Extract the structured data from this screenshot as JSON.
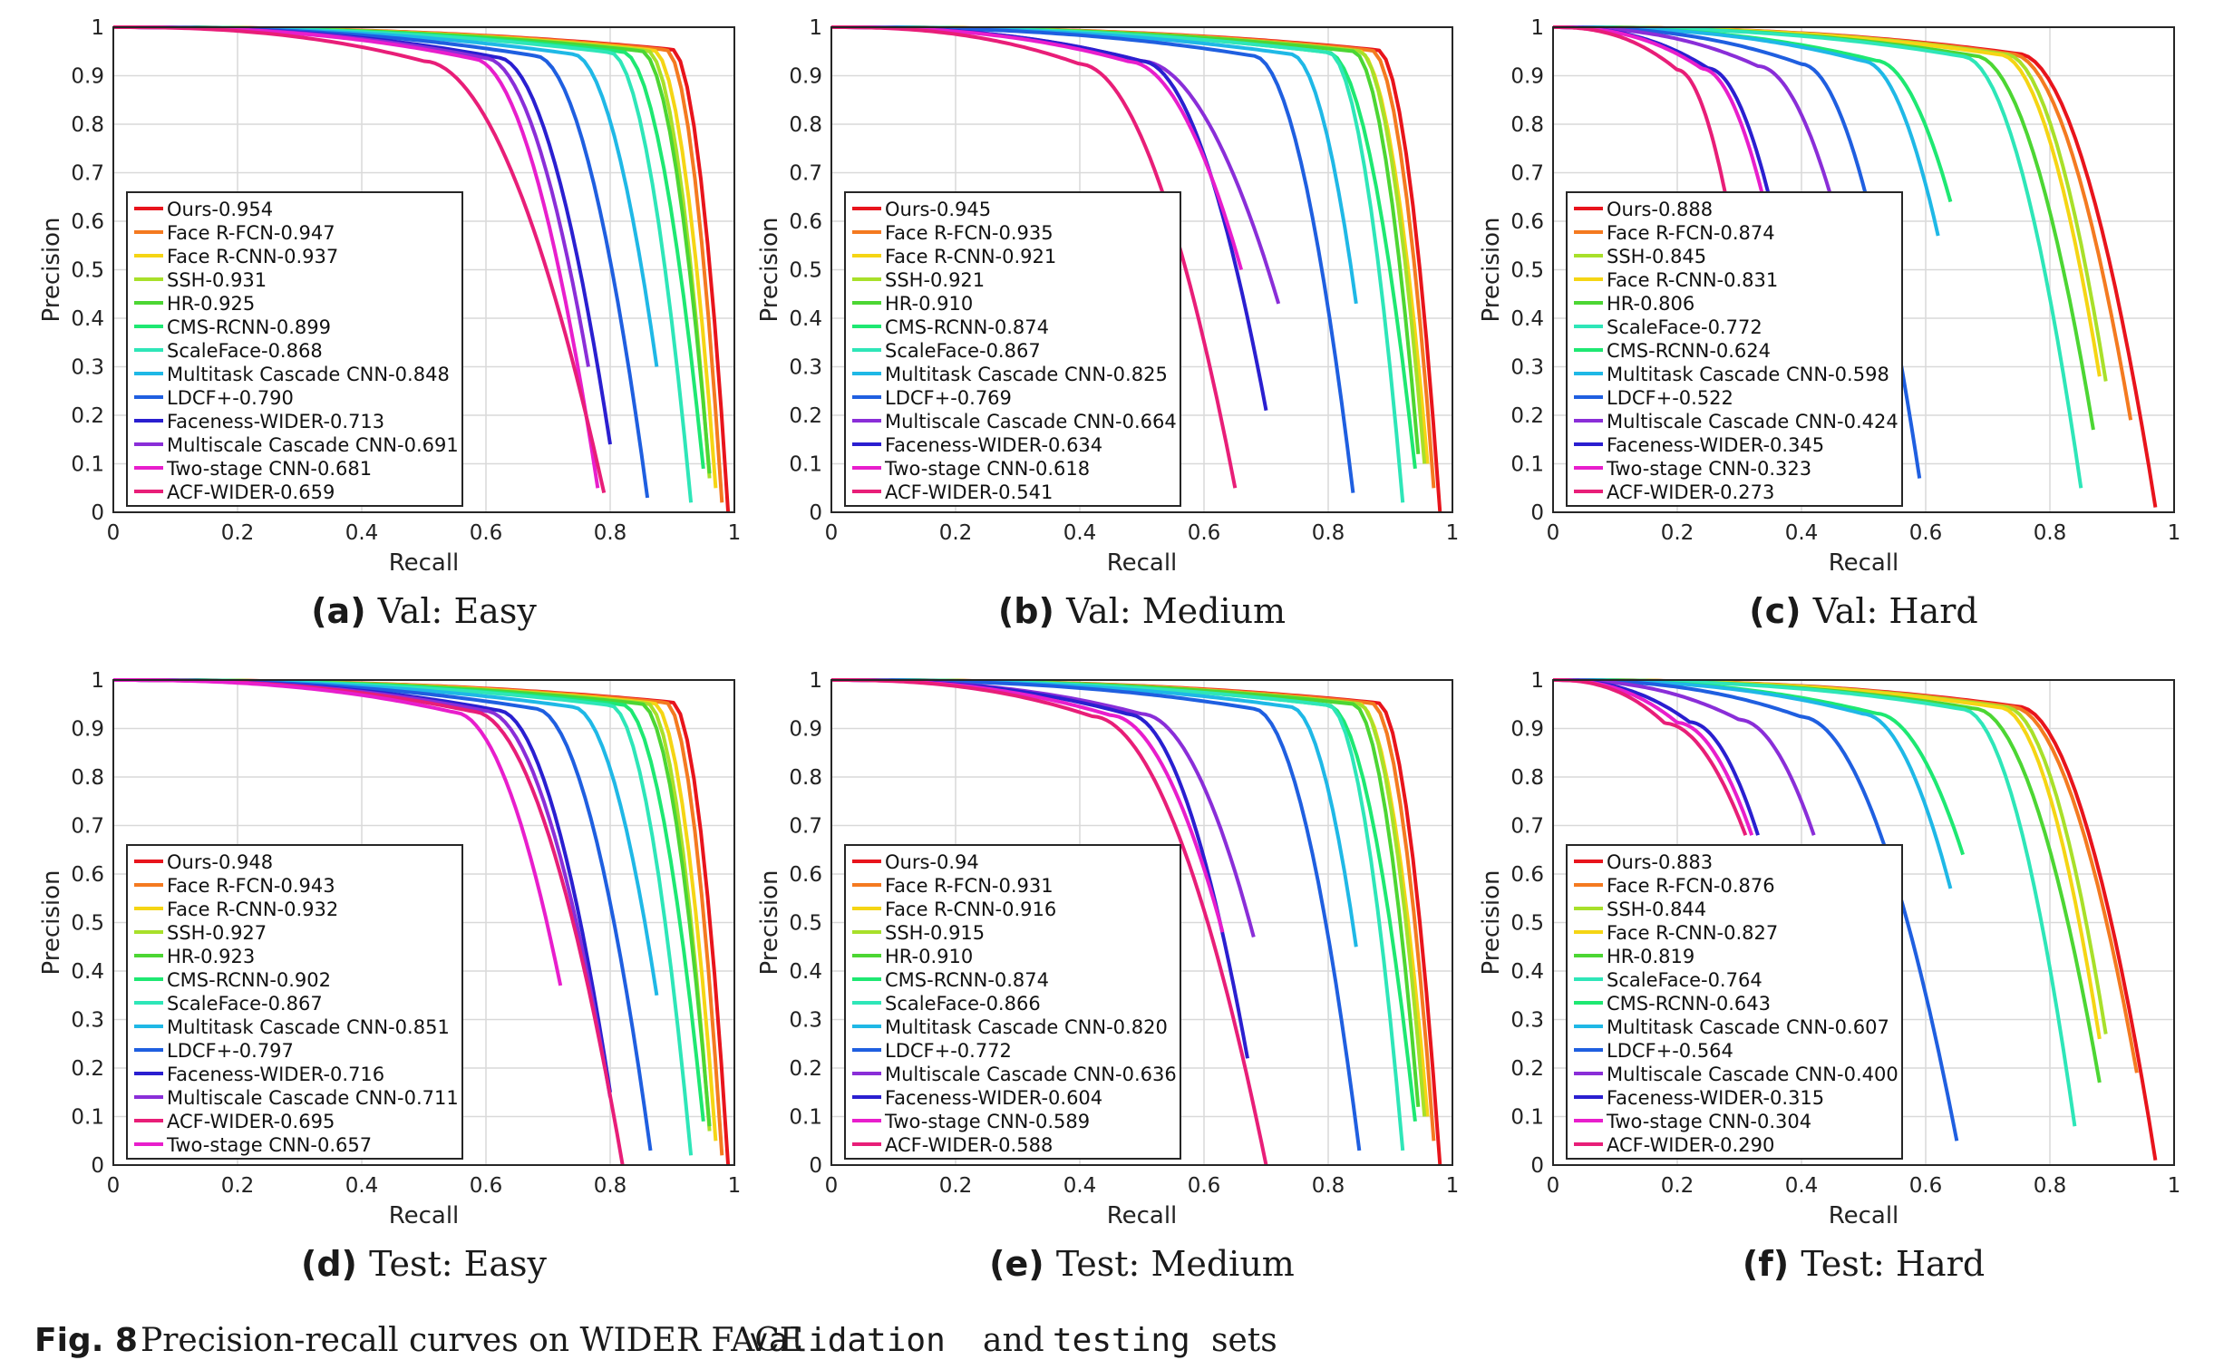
{
  "figure": {
    "caption_label": "Fig. 8",
    "caption_text_1": "Precision-recall curves on WIDER FACE",
    "caption_code_1": "validation",
    "caption_text_2": "and",
    "caption_code_2": "testing",
    "caption_text_3": "sets"
  },
  "colors": {
    "Ours": "#e8141c",
    "Face R-FCN": "#f47a20",
    "Face R-CNN": "#f5d514",
    "SSH": "#a8e02a",
    "HR": "#4cd633",
    "CMS-RCNN": "#1ee872",
    "ScaleFace": "#2ee6b8",
    "Multitask Cascade CNN": "#1fb8e6",
    "LDCF+": "#1f5fe0",
    "Faceness-WIDER": "#2a1fd0",
    "Multiscale Cascade CNN": "#8a2ed8",
    "Two-stage CNN": "#e81ecc",
    "ACF-WIDER": "#e81e78"
  },
  "chart_data": [
    {
      "type": "line",
      "panel_label": "(a)",
      "subtitle": "Val: Easy",
      "xlabel": "Recall",
      "ylabel": "Precision",
      "xlim": [
        0,
        1
      ],
      "ylim": [
        0,
        1
      ],
      "xticks": [
        "0",
        "0.2",
        "0.4",
        "0.6",
        "0.8",
        "1"
      ],
      "yticks": [
        "0",
        "0.1",
        "0.2",
        "0.3",
        "0.4",
        "0.5",
        "0.6",
        "0.7",
        "0.8",
        "0.9",
        "1"
      ],
      "grid": true,
      "legend_position": "lower-left",
      "series": [
        {
          "name": "Ours",
          "label": "Ours-0.954",
          "end_recall": 0.99,
          "end_precision": 0.0,
          "knee": 0.9
        },
        {
          "name": "Face R-FCN",
          "label": "Face R-FCN-0.947",
          "end_recall": 0.98,
          "end_precision": 0.02,
          "knee": 0.89
        },
        {
          "name": "Face R-CNN",
          "label": "Face R-CNN-0.937",
          "end_recall": 0.97,
          "end_precision": 0.05,
          "knee": 0.87
        },
        {
          "name": "SSH",
          "label": "SSH-0.931",
          "end_recall": 0.96,
          "end_precision": 0.07,
          "knee": 0.86
        },
        {
          "name": "HR",
          "label": "HR-0.925",
          "end_recall": 0.96,
          "end_precision": 0.08,
          "knee": 0.85
        },
        {
          "name": "CMS-RCNN",
          "label": "CMS-RCNN-0.899",
          "end_recall": 0.95,
          "end_precision": 0.09,
          "knee": 0.82
        },
        {
          "name": "ScaleFace",
          "label": "ScaleFace-0.868",
          "end_recall": 0.93,
          "end_precision": 0.02,
          "knee": 0.8
        },
        {
          "name": "Multitask Cascade CNN",
          "label": "Multitask Cascade CNN-0.848",
          "end_recall": 0.875,
          "end_precision": 0.3,
          "knee": 0.74
        },
        {
          "name": "LDCF+",
          "label": "LDCF+-0.790",
          "end_recall": 0.86,
          "end_precision": 0.03,
          "knee": 0.68
        },
        {
          "name": "Faceness-WIDER",
          "label": "Faceness-WIDER-0.713",
          "end_recall": 0.8,
          "end_precision": 0.14,
          "knee": 0.62
        },
        {
          "name": "Multiscale Cascade CNN",
          "label": "Multiscale Cascade CNN-0.691",
          "end_recall": 0.765,
          "end_precision": 0.3,
          "knee": 0.6
        },
        {
          "name": "Two-stage CNN",
          "label": "Two-stage CNN-0.681",
          "end_recall": 0.78,
          "end_precision": 0.05,
          "knee": 0.58
        },
        {
          "name": "ACF-WIDER",
          "label": "ACF-WIDER-0.659",
          "end_recall": 0.79,
          "end_precision": 0.04,
          "knee": 0.5
        }
      ]
    },
    {
      "type": "line",
      "panel_label": "(b)",
      "subtitle": "Val: Medium",
      "xlabel": "Recall",
      "ylabel": "Precision",
      "xlim": [
        0,
        1
      ],
      "ylim": [
        0,
        1
      ],
      "xticks": [
        "0",
        "0.2",
        "0.4",
        "0.6",
        "0.8",
        "1"
      ],
      "yticks": [
        "0",
        "0.1",
        "0.2",
        "0.3",
        "0.4",
        "0.5",
        "0.6",
        "0.7",
        "0.8",
        "0.9",
        "1"
      ],
      "grid": true,
      "legend_position": "lower-left",
      "series": [
        {
          "name": "Ours",
          "label": "Ours-0.945",
          "end_recall": 0.98,
          "end_precision": 0.0,
          "knee": 0.88
        },
        {
          "name": "Face R-FCN",
          "label": "Face R-FCN-0.935",
          "end_recall": 0.97,
          "end_precision": 0.05,
          "knee": 0.87
        },
        {
          "name": "Face R-CNN",
          "label": "Face R-CNN-0.921",
          "end_recall": 0.96,
          "end_precision": 0.1,
          "knee": 0.85
        },
        {
          "name": "SSH",
          "label": "SSH-0.921",
          "end_recall": 0.955,
          "end_precision": 0.1,
          "knee": 0.85
        },
        {
          "name": "HR",
          "label": "HR-0.910",
          "end_recall": 0.945,
          "end_precision": 0.12,
          "knee": 0.84
        },
        {
          "name": "CMS-RCNN",
          "label": "CMS-RCNN-0.874",
          "end_recall": 0.94,
          "end_precision": 0.09,
          "knee": 0.8
        },
        {
          "name": "ScaleFace",
          "label": "ScaleFace-0.867",
          "end_recall": 0.92,
          "end_precision": 0.02,
          "knee": 0.8
        },
        {
          "name": "Multitask Cascade CNN",
          "label": "Multitask Cascade CNN-0.825",
          "end_recall": 0.845,
          "end_precision": 0.43,
          "knee": 0.74
        },
        {
          "name": "LDCF+",
          "label": "LDCF+-0.769",
          "end_recall": 0.84,
          "end_precision": 0.04,
          "knee": 0.68
        },
        {
          "name": "Multiscale Cascade CNN",
          "label": "Multiscale Cascade CNN-0.664",
          "end_recall": 0.72,
          "end_precision": 0.43,
          "knee": 0.5
        },
        {
          "name": "Faceness-WIDER",
          "label": "Faceness-WIDER-0.634",
          "end_recall": 0.7,
          "end_precision": 0.21,
          "knee": 0.5
        },
        {
          "name": "Two-stage CNN",
          "label": "Two-stage CNN-0.618",
          "end_recall": 0.66,
          "end_precision": 0.5,
          "knee": 0.48
        },
        {
          "name": "ACF-WIDER",
          "label": "ACF-WIDER-0.541",
          "end_recall": 0.65,
          "end_precision": 0.05,
          "knee": 0.4
        }
      ]
    },
    {
      "type": "line",
      "panel_label": "(c)",
      "subtitle": "Val: Hard",
      "xlabel": "Recall",
      "ylabel": "Precision",
      "xlim": [
        0,
        1
      ],
      "ylim": [
        0,
        1
      ],
      "xticks": [
        "0",
        "0.2",
        "0.4",
        "0.6",
        "0.8",
        "1"
      ],
      "yticks": [
        "0",
        "0.1",
        "0.2",
        "0.3",
        "0.4",
        "0.5",
        "0.6",
        "0.7",
        "0.8",
        "0.9",
        "1"
      ],
      "grid": true,
      "legend_position": "lower-left",
      "series": [
        {
          "name": "Ours",
          "label": "Ours-0.888",
          "end_recall": 0.97,
          "end_precision": 0.01,
          "knee": 0.75
        },
        {
          "name": "Face R-FCN",
          "label": "Face R-FCN-0.874",
          "end_recall": 0.93,
          "end_precision": 0.19,
          "knee": 0.74
        },
        {
          "name": "SSH",
          "label": "SSH-0.845",
          "end_recall": 0.89,
          "end_precision": 0.27,
          "knee": 0.73
        },
        {
          "name": "Face R-CNN",
          "label": "Face R-CNN-0.831",
          "end_recall": 0.88,
          "end_precision": 0.28,
          "knee": 0.72
        },
        {
          "name": "HR",
          "label": "HR-0.806",
          "end_recall": 0.87,
          "end_precision": 0.17,
          "knee": 0.68
        },
        {
          "name": "ScaleFace",
          "label": "ScaleFace-0.772",
          "end_recall": 0.85,
          "end_precision": 0.05,
          "knee": 0.66
        },
        {
          "name": "CMS-RCNN",
          "label": "CMS-RCNN-0.624",
          "end_recall": 0.64,
          "end_precision": 0.64,
          "knee": 0.52
        },
        {
          "name": "Multitask Cascade CNN",
          "label": "Multitask Cascade CNN-0.598",
          "end_recall": 0.62,
          "end_precision": 0.57,
          "knee": 0.5
        },
        {
          "name": "LDCF+",
          "label": "LDCF+-0.522",
          "end_recall": 0.59,
          "end_precision": 0.07,
          "knee": 0.4
        },
        {
          "name": "Multiscale Cascade CNN",
          "label": "Multiscale Cascade CNN-0.424",
          "end_recall": 0.45,
          "end_precision": 0.64,
          "knee": 0.33
        },
        {
          "name": "Faceness-WIDER",
          "label": "Faceness-WIDER-0.345",
          "end_recall": 0.35,
          "end_precision": 0.64,
          "knee": 0.25
        },
        {
          "name": "Two-stage CNN",
          "label": "Two-stage CNN-0.323",
          "end_recall": 0.34,
          "end_precision": 0.64,
          "knee": 0.24
        },
        {
          "name": "ACF-WIDER",
          "label": "ACF-WIDER-0.273",
          "end_recall": 0.28,
          "end_precision": 0.64,
          "knee": 0.2
        }
      ]
    },
    {
      "type": "line",
      "panel_label": "(d)",
      "subtitle": "Test: Easy",
      "xlabel": "Recall",
      "ylabel": "Precision",
      "xlim": [
        0,
        1
      ],
      "ylim": [
        0,
        1
      ],
      "xticks": [
        "0",
        "0.2",
        "0.4",
        "0.6",
        "0.8",
        "1"
      ],
      "yticks": [
        "0",
        "0.1",
        "0.2",
        "0.3",
        "0.4",
        "0.5",
        "0.6",
        "0.7",
        "0.8",
        "0.9",
        "1"
      ],
      "grid": true,
      "legend_position": "lower-left",
      "series": [
        {
          "name": "Ours",
          "label": "Ours-0.948",
          "end_recall": 0.99,
          "end_precision": 0.0,
          "knee": 0.9
        },
        {
          "name": "Face R-FCN",
          "label": "Face R-FCN-0.943",
          "end_recall": 0.98,
          "end_precision": 0.02,
          "knee": 0.89
        },
        {
          "name": "Face R-CNN",
          "label": "Face R-CNN-0.932",
          "end_recall": 0.97,
          "end_precision": 0.05,
          "knee": 0.87
        },
        {
          "name": "SSH",
          "label": "SSH-0.927",
          "end_recall": 0.96,
          "end_precision": 0.07,
          "knee": 0.86
        },
        {
          "name": "HR",
          "label": "HR-0.923",
          "end_recall": 0.96,
          "end_precision": 0.08,
          "knee": 0.85
        },
        {
          "name": "CMS-RCNN",
          "label": "CMS-RCNN-0.902",
          "end_recall": 0.95,
          "end_precision": 0.09,
          "knee": 0.82
        },
        {
          "name": "ScaleFace",
          "label": "ScaleFace-0.867",
          "end_recall": 0.93,
          "end_precision": 0.02,
          "knee": 0.8
        },
        {
          "name": "Multitask Cascade CNN",
          "label": "Multitask Cascade CNN-0.851",
          "end_recall": 0.875,
          "end_precision": 0.35,
          "knee": 0.74
        },
        {
          "name": "LDCF+",
          "label": "LDCF+-0.797",
          "end_recall": 0.865,
          "end_precision": 0.03,
          "knee": 0.68
        },
        {
          "name": "Faceness-WIDER",
          "label": "Faceness-WIDER-0.716",
          "end_recall": 0.8,
          "end_precision": 0.15,
          "knee": 0.62
        },
        {
          "name": "Multiscale Cascade CNN",
          "label": "Multiscale Cascade CNN-0.711",
          "end_recall": 0.8,
          "end_precision": 0.14,
          "knee": 0.6
        },
        {
          "name": "ACF-WIDER",
          "label": "ACF-WIDER-0.695",
          "end_recall": 0.82,
          "end_precision": 0.0,
          "knee": 0.58
        },
        {
          "name": "Two-stage CNN",
          "label": "Two-stage CNN-0.657",
          "end_recall": 0.72,
          "end_precision": 0.37,
          "knee": 0.55
        }
      ]
    },
    {
      "type": "line",
      "panel_label": "(e)",
      "subtitle": "Test: Medium",
      "xlabel": "Recall",
      "ylabel": "Precision",
      "xlim": [
        0,
        1
      ],
      "ylim": [
        0,
        1
      ],
      "xticks": [
        "0",
        "0.2",
        "0.4",
        "0.6",
        "0.8",
        "1"
      ],
      "yticks": [
        "0",
        "0.1",
        "0.2",
        "0.3",
        "0.4",
        "0.5",
        "0.6",
        "0.7",
        "0.8",
        "0.9",
        "1"
      ],
      "grid": true,
      "legend_position": "lower-left",
      "series": [
        {
          "name": "Ours",
          "label": "Ours-0.94",
          "end_recall": 0.98,
          "end_precision": 0.0,
          "knee": 0.88
        },
        {
          "name": "Face R-FCN",
          "label": "Face R-FCN-0.931",
          "end_recall": 0.97,
          "end_precision": 0.05,
          "knee": 0.87
        },
        {
          "name": "Face R-CNN",
          "label": "Face R-CNN-0.916",
          "end_recall": 0.96,
          "end_precision": 0.1,
          "knee": 0.85
        },
        {
          "name": "SSH",
          "label": "SSH-0.915",
          "end_recall": 0.955,
          "end_precision": 0.1,
          "knee": 0.85
        },
        {
          "name": "HR",
          "label": "HR-0.910",
          "end_recall": 0.945,
          "end_precision": 0.12,
          "knee": 0.84
        },
        {
          "name": "CMS-RCNN",
          "label": "CMS-RCNN-0.874",
          "end_recall": 0.94,
          "end_precision": 0.09,
          "knee": 0.8
        },
        {
          "name": "ScaleFace",
          "label": "ScaleFace-0.866",
          "end_recall": 0.92,
          "end_precision": 0.03,
          "knee": 0.8
        },
        {
          "name": "Multitask Cascade CNN",
          "label": "Multitask Cascade CNN-0.820",
          "end_recall": 0.845,
          "end_precision": 0.45,
          "knee": 0.74
        },
        {
          "name": "LDCF+",
          "label": "LDCF+-0.772",
          "end_recall": 0.85,
          "end_precision": 0.03,
          "knee": 0.68
        },
        {
          "name": "Multiscale Cascade CNN",
          "label": "Multiscale Cascade CNN-0.636",
          "end_recall": 0.68,
          "end_precision": 0.47,
          "knee": 0.5
        },
        {
          "name": "Faceness-WIDER",
          "label": "Faceness-WIDER-0.604",
          "end_recall": 0.67,
          "end_precision": 0.22,
          "knee": 0.48
        },
        {
          "name": "Two-stage CNN",
          "label": "Two-stage CNN-0.589",
          "end_recall": 0.63,
          "end_precision": 0.48,
          "knee": 0.45
        },
        {
          "name": "ACF-WIDER",
          "label": "ACF-WIDER-0.588",
          "end_recall": 0.7,
          "end_precision": 0.0,
          "knee": 0.42
        }
      ]
    },
    {
      "type": "line",
      "panel_label": "(f)",
      "subtitle": "Test: Hard",
      "xlabel": "Recall",
      "ylabel": "Precision",
      "xlim": [
        0,
        1
      ],
      "ylim": [
        0,
        1
      ],
      "xticks": [
        "0",
        "0.2",
        "0.4",
        "0.6",
        "0.8",
        "1"
      ],
      "yticks": [
        "0",
        "0.1",
        "0.2",
        "0.3",
        "0.4",
        "0.5",
        "0.6",
        "0.7",
        "0.8",
        "0.9",
        "1"
      ],
      "grid": true,
      "legend_position": "lower-left",
      "series": [
        {
          "name": "Ours",
          "label": "Ours-0.883",
          "end_recall": 0.97,
          "end_precision": 0.01,
          "knee": 0.75
        },
        {
          "name": "Face R-FCN",
          "label": "Face R-FCN-0.876",
          "end_recall": 0.94,
          "end_precision": 0.19,
          "knee": 0.74
        },
        {
          "name": "SSH",
          "label": "SSH-0.844",
          "end_recall": 0.89,
          "end_precision": 0.27,
          "knee": 0.73
        },
        {
          "name": "Face R-CNN",
          "label": "Face R-CNN-0.827",
          "end_recall": 0.88,
          "end_precision": 0.26,
          "knee": 0.72
        },
        {
          "name": "HR",
          "label": "HR-0.819",
          "end_recall": 0.88,
          "end_precision": 0.17,
          "knee": 0.68
        },
        {
          "name": "ScaleFace",
          "label": "ScaleFace-0.764",
          "end_recall": 0.84,
          "end_precision": 0.08,
          "knee": 0.66
        },
        {
          "name": "CMS-RCNN",
          "label": "CMS-RCNN-0.643",
          "end_recall": 0.66,
          "end_precision": 0.64,
          "knee": 0.52
        },
        {
          "name": "Multitask Cascade CNN",
          "label": "Multitask Cascade CNN-0.607",
          "end_recall": 0.64,
          "end_precision": 0.57,
          "knee": 0.5
        },
        {
          "name": "LDCF+",
          "label": "LDCF+-0.564",
          "end_recall": 0.65,
          "end_precision": 0.05,
          "knee": 0.4
        },
        {
          "name": "Multiscale Cascade CNN",
          "label": "Multiscale Cascade CNN-0.400",
          "end_recall": 0.42,
          "end_precision": 0.68,
          "knee": 0.3
        },
        {
          "name": "Faceness-WIDER",
          "label": "Faceness-WIDER-0.315",
          "end_recall": 0.33,
          "end_precision": 0.68,
          "knee": 0.22
        },
        {
          "name": "Two-stage CNN",
          "label": "Two-stage CNN-0.304",
          "end_recall": 0.32,
          "end_precision": 0.68,
          "knee": 0.2
        },
        {
          "name": "ACF-WIDER",
          "label": "ACF-WIDER-0.290",
          "end_recall": 0.31,
          "end_precision": 0.68,
          "knee": 0.18
        }
      ]
    }
  ]
}
